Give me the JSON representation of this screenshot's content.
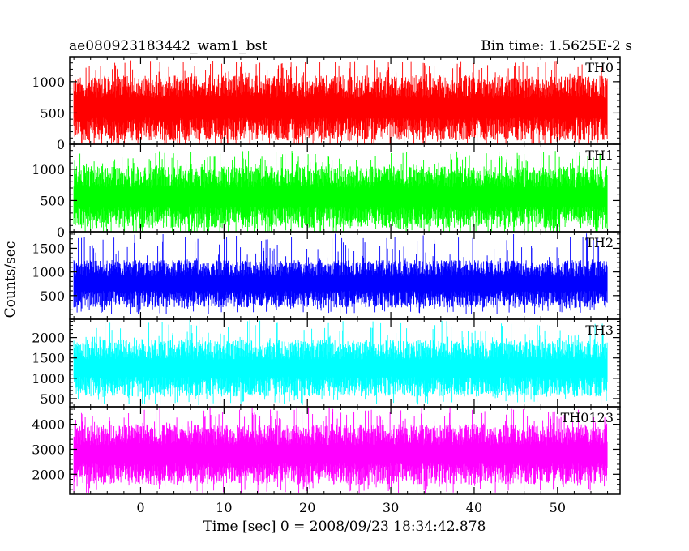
{
  "chart_data": {
    "type": "line",
    "title": "ae080923183442_wam1_bst",
    "subtitle": "Bin time: 1.5625E-2 s",
    "xlabel": "Time [sec] 0 = 2008/09/23 18:34:42.878",
    "ylabel": "Counts/sec",
    "xlim": [
      -8.5,
      57.5
    ],
    "x_data_range": [
      -8.0,
      56.0
    ],
    "x_ticks": [
      "0",
      "10",
      "20",
      "30",
      "40",
      "50"
    ],
    "x_tick_values": [
      0,
      10,
      20,
      30,
      40,
      50
    ],
    "grid": false,
    "panels": [
      {
        "name": "TH0",
        "color": "#ff0000",
        "ylim": [
          0,
          1400
        ],
        "y_ticks": [
          "0",
          "500",
          "1000"
        ],
        "y_tick_values": [
          0,
          500,
          1000
        ],
        "typical_range": [
          60,
          1100
        ],
        "peak_max": 1350
      },
      {
        "name": "TH1",
        "color": "#00ff00",
        "ylim": [
          0,
          1400
        ],
        "y_ticks": [
          "0",
          "500",
          "1000"
        ],
        "y_tick_values": [
          0,
          500,
          1000
        ],
        "typical_range": [
          60,
          1050
        ],
        "peak_max": 1300
      },
      {
        "name": "TH2",
        "color": "#0000ff",
        "ylim": [
          0,
          1850
        ],
        "y_ticks": [
          "500",
          "1000",
          "1500"
        ],
        "y_tick_values": [
          500,
          1000,
          1500
        ],
        "typical_range": [
          250,
          1250
        ],
        "peak_max": 1850
      },
      {
        "name": "TH3",
        "color": "#00ffff",
        "ylim": [
          300,
          2450
        ],
        "y_ticks": [
          "500",
          "1000",
          "1500",
          "2000"
        ],
        "y_tick_values": [
          500,
          1000,
          1500,
          2000
        ],
        "typical_range": [
          550,
          1950
        ],
        "peak_max": 2450
      },
      {
        "name": "TH0123",
        "color": "#ff00ff",
        "ylim": [
          1200,
          4700
        ],
        "y_ticks": [
          "2000",
          "3000",
          "4000"
        ],
        "y_tick_values": [
          2000,
          3000,
          4000
        ],
        "typical_range": [
          1600,
          4000
        ],
        "peak_max": 4700
      }
    ]
  }
}
